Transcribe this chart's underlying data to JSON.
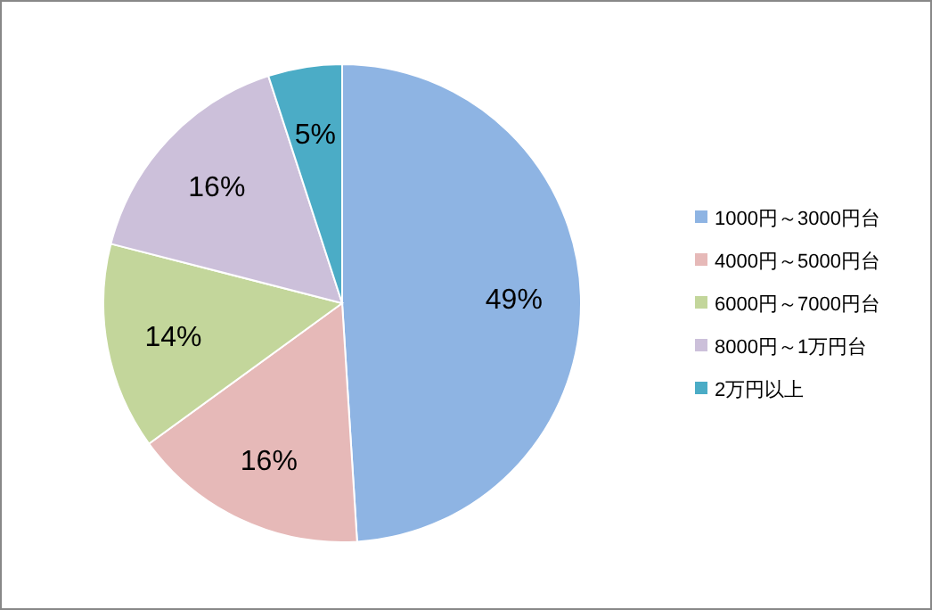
{
  "chart_data": {
    "type": "pie",
    "categories": [
      "1000円～3000円台",
      "4000円～5000円台",
      "6000円～7000円台",
      "8000円～1万円台",
      "2万円以上"
    ],
    "values": [
      49,
      16,
      14,
      16,
      5
    ],
    "value_labels": [
      "49%",
      "16%",
      "14%",
      "16%",
      "5%"
    ],
    "colors": [
      "#8eb4e3",
      "#e6b9b8",
      "#c3d69b",
      "#ccc0da",
      "#4bacc6"
    ],
    "legend": "right"
  }
}
